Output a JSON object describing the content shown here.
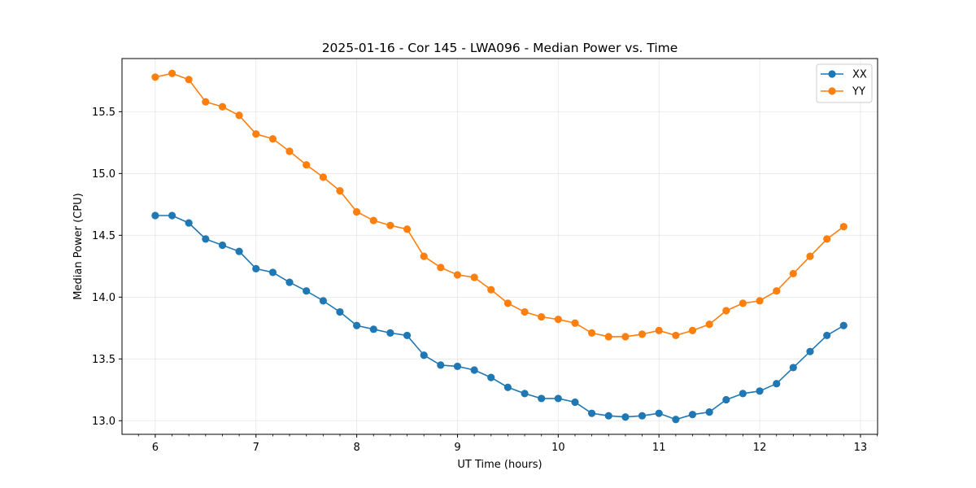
{
  "chart_data": {
    "type": "line",
    "title": "2025-01-16 - Cor 145 - LWA096 - Median Power vs. Time",
    "xlabel": "UT Time (hours)",
    "ylabel": "Median Power (CPU)",
    "xlim": [
      5.67,
      13.17
    ],
    "ylim": [
      12.89,
      15.93
    ],
    "xticks": [
      6,
      7,
      8,
      9,
      10,
      11,
      12,
      13
    ],
    "xtick_labels": [
      "6",
      "7",
      "8",
      "9",
      "10",
      "11",
      "12",
      "13"
    ],
    "yticks": [
      13.0,
      13.5,
      14.0,
      14.5,
      15.0,
      15.5
    ],
    "ytick_labels": [
      "13.0",
      "13.5",
      "14.0",
      "14.5",
      "15.0",
      "15.5"
    ],
    "grid": true,
    "legend_position": "top-right",
    "x": [
      6.0,
      6.167,
      6.333,
      6.5,
      6.667,
      6.833,
      7.0,
      7.167,
      7.333,
      7.5,
      7.667,
      7.833,
      8.0,
      8.167,
      8.333,
      8.5,
      8.667,
      8.833,
      9.0,
      9.167,
      9.333,
      9.5,
      9.667,
      9.833,
      10.0,
      10.167,
      10.333,
      10.5,
      10.667,
      10.833,
      11.0,
      11.167,
      11.333,
      11.5,
      11.667,
      11.833,
      12.0,
      12.167,
      12.333,
      12.5,
      12.667,
      12.833
    ],
    "series": [
      {
        "name": "XX",
        "color": "#1f77b4",
        "values": [
          14.66,
          14.66,
          14.6,
          14.47,
          14.42,
          14.37,
          14.23,
          14.2,
          14.12,
          14.05,
          13.97,
          13.88,
          13.77,
          13.74,
          13.71,
          13.69,
          13.53,
          13.45,
          13.44,
          13.41,
          13.35,
          13.27,
          13.22,
          13.18,
          13.18,
          13.15,
          13.06,
          13.04,
          13.03,
          13.04,
          13.06,
          13.01,
          13.05,
          13.07,
          13.17,
          13.22,
          13.24,
          13.3,
          13.43,
          13.56,
          13.69,
          13.77
        ]
      },
      {
        "name": "YY",
        "color": "#ff7f0e",
        "values": [
          15.78,
          15.81,
          15.76,
          15.58,
          15.54,
          15.47,
          15.32,
          15.28,
          15.18,
          15.07,
          14.97,
          14.86,
          14.69,
          14.62,
          14.58,
          14.55,
          14.33,
          14.24,
          14.18,
          14.16,
          14.06,
          13.95,
          13.88,
          13.84,
          13.82,
          13.79,
          13.71,
          13.68,
          13.68,
          13.7,
          13.73,
          13.69,
          13.73,
          13.78,
          13.89,
          13.95,
          13.97,
          14.05,
          14.19,
          14.33,
          14.47,
          14.57
        ]
      }
    ]
  }
}
